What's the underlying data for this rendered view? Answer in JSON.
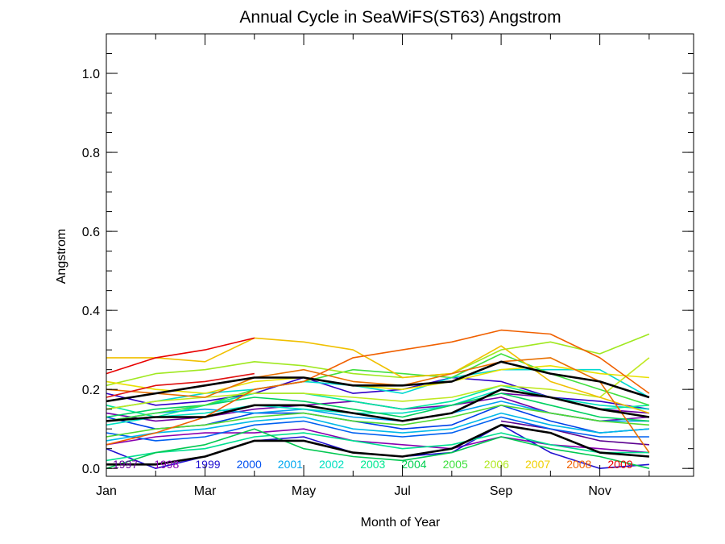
{
  "chart_data": {
    "type": "line",
    "title": "Annual Cycle in SeaWiFS(ST63) Angstrom",
    "xlabel": "Month of Year",
    "ylabel": "Angstrom",
    "x": [
      1,
      2,
      3,
      4,
      5,
      6,
      7,
      8,
      9,
      10,
      11,
      12
    ],
    "xlim": [
      1,
      12.9
    ],
    "ylim": [
      -0.02,
      1.1
    ],
    "x_ticks": [
      {
        "x": 1,
        "label": "Jan"
      },
      {
        "x": 3,
        "label": "Mar"
      },
      {
        "x": 5,
        "label": "May"
      },
      {
        "x": 7,
        "label": "Jul"
      },
      {
        "x": 9,
        "label": "Sep"
      },
      {
        "x": 11,
        "label": "Nov"
      }
    ],
    "y_ticks": [
      {
        "y": 0.0,
        "label": "0.0"
      },
      {
        "y": 0.2,
        "label": "0.2"
      },
      {
        "y": 0.4,
        "label": "0.4"
      },
      {
        "y": 0.6,
        "label": "0.6"
      },
      {
        "y": 0.8,
        "label": "0.8"
      },
      {
        "y": 1.0,
        "label": "1.0"
      }
    ],
    "grid": false,
    "series": [
      {
        "name": "1997",
        "color": "#5a0090",
        "values": [
          null,
          null,
          null,
          null,
          null,
          null,
          null,
          null,
          0.12,
          0.1,
          0.07,
          0.06
        ]
      },
      {
        "name": "1997",
        "color": "#6a00a0",
        "values": [
          null,
          null,
          null,
          null,
          null,
          null,
          null,
          null,
          0.19,
          0.18,
          0.15,
          0.14
        ]
      },
      {
        "name": "1998",
        "color": "#7000a8",
        "values": [
          0.14,
          0.12,
          0.13,
          0.15,
          0.16,
          0.17,
          0.15,
          0.16,
          0.18,
          0.14,
          0.12,
          0.13
        ]
      },
      {
        "name": "1998",
        "color": "#8800b0",
        "values": [
          0.06,
          0.08,
          0.09,
          0.09,
          0.1,
          0.07,
          0.06,
          0.05,
          0.08,
          0.06,
          0.05,
          0.04
        ]
      },
      {
        "name": "1999",
        "color": "#3000c8",
        "values": [
          0.19,
          0.16,
          0.17,
          0.19,
          0.23,
          0.19,
          0.2,
          0.23,
          0.22,
          0.18,
          0.17,
          0.15
        ]
      },
      {
        "name": "1999",
        "color": "#2010d0",
        "values": [
          0.05,
          0.0,
          0.03,
          0.07,
          0.08,
          0.04,
          0.03,
          0.04,
          0.11,
          0.04,
          0.0,
          0.01
        ]
      },
      {
        "name": "2000",
        "color": "#0040e8",
        "values": [
          0.13,
          0.1,
          0.11,
          0.14,
          0.14,
          0.12,
          0.1,
          0.11,
          0.16,
          0.12,
          0.09,
          0.1
        ]
      },
      {
        "name": "2000",
        "color": "#0060f0",
        "values": [
          0.09,
          0.07,
          0.08,
          0.11,
          0.12,
          0.09,
          0.08,
          0.09,
          0.13,
          0.1,
          0.08,
          0.08
        ]
      },
      {
        "name": "2001",
        "color": "#00a0f0",
        "values": [
          0.12,
          0.14,
          0.15,
          0.14,
          0.15,
          0.13,
          0.12,
          0.14,
          0.17,
          0.14,
          0.12,
          0.12
        ]
      },
      {
        "name": "2001",
        "color": "#00b8e8",
        "values": [
          0.07,
          0.09,
          0.1,
          0.12,
          0.13,
          0.1,
          0.09,
          0.1,
          0.14,
          0.11,
          0.09,
          0.1
        ]
      },
      {
        "name": "2002",
        "color": "#00d8d0",
        "values": [
          0.15,
          0.17,
          0.19,
          0.2,
          0.22,
          0.21,
          0.19,
          0.23,
          0.25,
          0.25,
          0.25,
          0.18
        ]
      },
      {
        "name": "2002",
        "color": "#00e0c0",
        "values": [
          0.11,
          0.13,
          0.14,
          0.16,
          0.15,
          0.14,
          0.14,
          0.16,
          0.2,
          0.18,
          0.16,
          0.15
        ]
      },
      {
        "name": "2003",
        "color": "#00e8a0",
        "values": [
          0.16,
          0.13,
          0.16,
          0.19,
          0.19,
          0.17,
          0.15,
          0.17,
          0.21,
          0.18,
          0.15,
          0.16
        ]
      },
      {
        "name": "2003",
        "color": "#00e090",
        "values": [
          0.02,
          0.04,
          0.05,
          0.08,
          0.09,
          0.07,
          0.05,
          0.06,
          0.09,
          0.06,
          0.04,
          0.04
        ]
      },
      {
        "name": "2004",
        "color": "#00d060",
        "values": [
          0.13,
          0.15,
          0.16,
          0.18,
          0.17,
          0.15,
          0.13,
          0.16,
          0.19,
          0.16,
          0.13,
          0.12
        ]
      },
      {
        "name": "2004",
        "color": "#00c850",
        "values": [
          0.0,
          0.04,
          0.06,
          0.1,
          0.05,
          0.03,
          0.02,
          0.04,
          0.08,
          0.05,
          0.03,
          0.0
        ]
      },
      {
        "name": "2005",
        "color": "#40e040",
        "values": [
          0.12,
          0.14,
          0.16,
          0.2,
          0.22,
          0.25,
          0.24,
          0.23,
          0.29,
          0.24,
          0.2,
          0.16
        ]
      },
      {
        "name": "2005",
        "color": "#50d830",
        "values": [
          0.08,
          0.1,
          0.11,
          0.13,
          0.14,
          0.12,
          0.11,
          0.13,
          0.16,
          0.14,
          0.12,
          0.11
        ]
      },
      {
        "name": "2006",
        "color": "#a0e820",
        "values": [
          0.21,
          0.24,
          0.25,
          0.27,
          0.26,
          0.24,
          0.23,
          0.24,
          0.3,
          0.32,
          0.29,
          0.34
        ]
      },
      {
        "name": "2006",
        "color": "#c0e820",
        "values": [
          0.15,
          0.17,
          0.18,
          0.19,
          0.19,
          0.18,
          0.17,
          0.18,
          0.21,
          0.2,
          0.18,
          0.28
        ]
      },
      {
        "name": "2007",
        "color": "#e8e000",
        "values": [
          0.22,
          0.2,
          0.19,
          0.22,
          0.23,
          0.21,
          0.2,
          0.22,
          0.25,
          0.26,
          0.24,
          0.23
        ]
      },
      {
        "name": "2007",
        "color": "#f0c000",
        "values": [
          0.28,
          0.28,
          0.27,
          0.33,
          0.32,
          0.3,
          0.23,
          0.24,
          0.31,
          0.22,
          0.18,
          0.14
        ]
      },
      {
        "name": "2008",
        "color": "#f06000",
        "values": [
          0.06,
          0.09,
          0.13,
          0.2,
          0.22,
          0.28,
          0.3,
          0.32,
          0.35,
          0.34,
          0.28,
          0.19
        ]
      },
      {
        "name": "2008",
        "color": "#e87000",
        "values": [
          0.2,
          0.19,
          0.18,
          0.23,
          0.25,
          0.22,
          0.21,
          0.24,
          0.27,
          0.28,
          0.22,
          0.04
        ]
      },
      {
        "name": "2009",
        "color": "#e80000",
        "values": [
          0.24,
          0.28,
          0.3,
          0.33,
          null,
          null,
          null,
          null,
          null,
          null,
          null,
          null
        ]
      },
      {
        "name": "2009",
        "color": "#e01010",
        "values": [
          0.18,
          0.21,
          0.22,
          0.24,
          null,
          null,
          null,
          null,
          null,
          null,
          null,
          null
        ]
      },
      {
        "name": "",
        "color": "#000000",
        "width": 2.6,
        "values": [
          0.17,
          0.19,
          0.21,
          0.23,
          0.23,
          0.21,
          0.21,
          0.22,
          0.27,
          0.24,
          0.22,
          0.18
        ]
      },
      {
        "name": "",
        "color": "#000000",
        "width": 2.6,
        "values": [
          0.12,
          0.13,
          0.13,
          0.16,
          0.16,
          0.14,
          0.12,
          0.14,
          0.2,
          0.18,
          0.15,
          0.13
        ]
      },
      {
        "name": "",
        "color": "#000000",
        "width": 2.6,
        "values": [
          0.01,
          0.01,
          0.03,
          0.07,
          0.07,
          0.04,
          0.03,
          0.05,
          0.11,
          0.09,
          0.04,
          0.03
        ]
      }
    ],
    "legend": {
      "placement": "bottom-inside",
      "entries": [
        {
          "label": "1997",
          "color": "#6a00a0"
        },
        {
          "label": "1998",
          "color": "#8800b0"
        },
        {
          "label": "1999",
          "color": "#2010d0"
        },
        {
          "label": "2000",
          "color": "#0050f0"
        },
        {
          "label": "2001",
          "color": "#00a8f0"
        },
        {
          "label": "2002",
          "color": "#00e0c0"
        },
        {
          "label": "2003",
          "color": "#00e890"
        },
        {
          "label": "2004",
          "color": "#00d050"
        },
        {
          "label": "2005",
          "color": "#40e040"
        },
        {
          "label": "2006",
          "color": "#b0e820"
        },
        {
          "label": "2007",
          "color": "#f0d000"
        },
        {
          "label": "2008",
          "color": "#f06000"
        },
        {
          "label": "2009",
          "color": "#e80000"
        }
      ]
    }
  }
}
